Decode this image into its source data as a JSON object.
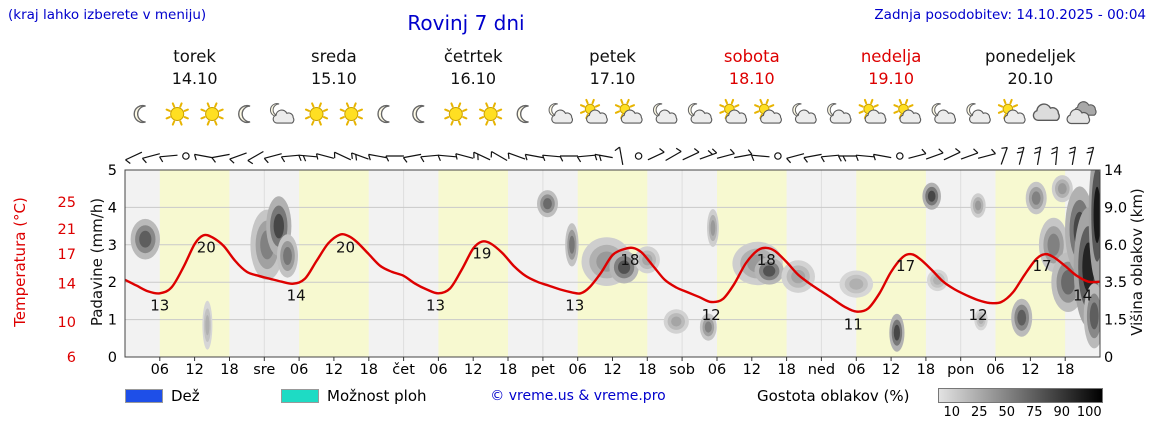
{
  "header": {
    "hint": "(kraj lahko izberete v meniju)",
    "title": "Rovinj 7 dni",
    "last_update": "Zadnja posodobitev: 14.10.2025 - 00:04"
  },
  "colors": {
    "blue": "#0000cc",
    "red": "#dd0000",
    "day_band": "#f7f9d0",
    "night_band": "#f2f2f2",
    "grid": "#c9c9c9",
    "rain_blue": "#1e4fe8",
    "shower_cyan": "#1edbc4",
    "density_from": "#e2e2e2",
    "density_to": "#000000"
  },
  "days": [
    {
      "name": "torek",
      "date": "14.10",
      "red": false,
      "icons": [
        "moon",
        "sun",
        "sun",
        "moon"
      ]
    },
    {
      "name": "sreda",
      "date": "15.10",
      "red": false,
      "icons": [
        "moon-cloud",
        "sun",
        "sun",
        "moon"
      ]
    },
    {
      "name": "četrtek",
      "date": "16.10",
      "red": false,
      "icons": [
        "moon",
        "sun",
        "sun",
        "moon"
      ]
    },
    {
      "name": "petek",
      "date": "17.10",
      "red": false,
      "icons": [
        "moon-cloud",
        "sun-cloud",
        "sun-cloud",
        "moon-cloud"
      ]
    },
    {
      "name": "sobota",
      "date": "18.10",
      "red": true,
      "icons": [
        "moon-cloud",
        "sun-cloud",
        "sun-cloud",
        "moon-cloud"
      ]
    },
    {
      "name": "nedelja",
      "date": "19.10",
      "red": true,
      "icons": [
        "moon-cloud",
        "sun-cloud",
        "sun-cloud",
        "moon-cloud"
      ]
    },
    {
      "name": "ponedeljek",
      "date": "20.10",
      "red": false,
      "icons": [
        "moon-cloud",
        "sun-cloud",
        "cloud",
        "clouds"
      ]
    }
  ],
  "chart_data": {
    "type": "line",
    "title": "Rovinj 7 dni",
    "x_axis": {
      "unit": "hour",
      "range": [
        0,
        168
      ],
      "hour_tick_labels": [
        "06",
        "12",
        "18"
      ],
      "day_boundary_labels": [
        "sre",
        "čet",
        "pet",
        "sob",
        "ned",
        "pon"
      ],
      "daylight_hours": [
        6,
        18
      ]
    },
    "y_left_precip": {
      "label": "Padavine (mm/h)",
      "ticks": [
        0,
        1,
        2,
        3,
        4,
        5
      ]
    },
    "y_left_temp": {
      "label": "Temperatura (°C)",
      "ticks": [
        {
          "v": 6,
          "u": 0
        },
        {
          "v": 10,
          "u": 0.93
        },
        {
          "v": 14,
          "u": 1.96
        },
        {
          "v": 17,
          "u": 2.75
        },
        {
          "v": 21,
          "u": 3.42
        },
        {
          "v": 25,
          "u": 4.15
        }
      ]
    },
    "y_right_cloud": {
      "label": "Višina oblakov (km)",
      "ticks": [
        {
          "label": "0",
          "u": 0
        },
        {
          "label": "1.5",
          "u": 1
        },
        {
          "label": "3.5",
          "u": 2
        },
        {
          "label": "6.0",
          "u": 3
        },
        {
          "label": "9.0",
          "u": 4
        },
        {
          "label": "14",
          "u": 5
        }
      ]
    },
    "daily_min_max": [
      [
        13,
        20
      ],
      [
        14,
        20
      ],
      [
        13,
        19
      ],
      [
        13,
        18
      ],
      [
        12,
        18
      ],
      [
        11,
        17
      ],
      [
        12,
        17
      ]
    ],
    "series": [
      {
        "name": "Temperatura (°C)",
        "color": "#dd0000",
        "points": [
          [
            0,
            14.4
          ],
          [
            2,
            13.8
          ],
          [
            4,
            13.2
          ],
          [
            6,
            13.0
          ],
          [
            8,
            13.6
          ],
          [
            10,
            15.6
          ],
          [
            12,
            18.6
          ],
          [
            13.5,
            20.0
          ],
          [
            15,
            19.7
          ],
          [
            17,
            18.3
          ],
          [
            19,
            16.3
          ],
          [
            21,
            15.2
          ],
          [
            23,
            14.8
          ],
          [
            25,
            14.5
          ],
          [
            27,
            14.2
          ],
          [
            29,
            14.0
          ],
          [
            31,
            14.5
          ],
          [
            33,
            16.3
          ],
          [
            35,
            18.7
          ],
          [
            37,
            20.1
          ],
          [
            38.5,
            19.9
          ],
          [
            40,
            18.9
          ],
          [
            42,
            17.0
          ],
          [
            44,
            15.8
          ],
          [
            46,
            15.2
          ],
          [
            48,
            14.8
          ],
          [
            50,
            14.0
          ],
          [
            52,
            13.4
          ],
          [
            54,
            13.0
          ],
          [
            56,
            13.5
          ],
          [
            58,
            15.4
          ],
          [
            60,
            17.9
          ],
          [
            61.5,
            19.0
          ],
          [
            63,
            18.7
          ],
          [
            65,
            17.2
          ],
          [
            67,
            15.8
          ],
          [
            69,
            14.8
          ],
          [
            71,
            14.2
          ],
          [
            73,
            13.8
          ],
          [
            75,
            13.4
          ],
          [
            77,
            13.1
          ],
          [
            78.5,
            13.0
          ],
          [
            80,
            13.6
          ],
          [
            82,
            15.1
          ],
          [
            84,
            16.9
          ],
          [
            86,
            17.8
          ],
          [
            87.5,
            18.0
          ],
          [
            89,
            17.3
          ],
          [
            91,
            15.8
          ],
          [
            93,
            14.4
          ],
          [
            95,
            13.6
          ],
          [
            97,
            13.1
          ],
          [
            99,
            12.6
          ],
          [
            101,
            12.1
          ],
          [
            103,
            12.4
          ],
          [
            105,
            14.0
          ],
          [
            107,
            16.1
          ],
          [
            109,
            17.6
          ],
          [
            110.5,
            18.0
          ],
          [
            112,
            17.5
          ],
          [
            114,
            16.2
          ],
          [
            116,
            14.9
          ],
          [
            118,
            14.0
          ],
          [
            120,
            13.2
          ],
          [
            122,
            12.4
          ],
          [
            124,
            11.6
          ],
          [
            126,
            11.1
          ],
          [
            128,
            11.4
          ],
          [
            130,
            13.0
          ],
          [
            132,
            15.2
          ],
          [
            134,
            16.7
          ],
          [
            135.5,
            17.0
          ],
          [
            137,
            16.5
          ],
          [
            139,
            15.4
          ],
          [
            141,
            14.2
          ],
          [
            143,
            13.4
          ],
          [
            145,
            12.8
          ],
          [
            147,
            12.3
          ],
          [
            149,
            12.0
          ],
          [
            151,
            12.1
          ],
          [
            153,
            13.1
          ],
          [
            155,
            14.9
          ],
          [
            157,
            16.5
          ],
          [
            158.5,
            17.0
          ],
          [
            160,
            16.7
          ],
          [
            162,
            15.8
          ],
          [
            164,
            14.8
          ],
          [
            166,
            14.2
          ],
          [
            168,
            14.2
          ]
        ]
      }
    ],
    "temperature_labels": [
      {
        "t": 6,
        "v": 13
      },
      {
        "t": 14,
        "v": 20
      },
      {
        "t": 29.5,
        "v": 14
      },
      {
        "t": 38,
        "v": 20
      },
      {
        "t": 53.5,
        "v": 13
      },
      {
        "t": 61.5,
        "v": 19
      },
      {
        "t": 77.5,
        "v": 13
      },
      {
        "t": 87,
        "v": 18
      },
      {
        "t": 101,
        "v": 12
      },
      {
        "t": 110.5,
        "v": 18
      },
      {
        "t": 125.5,
        "v": 11
      },
      {
        "t": 134.5,
        "v": 17
      },
      {
        "t": 147,
        "v": 12
      },
      {
        "t": 158,
        "v": 17
      },
      {
        "t": 165,
        "v": 14
      }
    ],
    "clouds": [
      {
        "t": 3.5,
        "u": 3.15,
        "w": 3.5,
        "h": 0.75,
        "s": 60
      },
      {
        "t": 14.2,
        "u": 0.85,
        "w": 1.2,
        "h": 0.9,
        "s": 25
      },
      {
        "t": 24.5,
        "u": 3.0,
        "w": 4.0,
        "h": 1.3,
        "s": 45
      },
      {
        "t": 26.5,
        "u": 3.5,
        "w": 3.0,
        "h": 1.1,
        "s": 70
      },
      {
        "t": 28,
        "u": 2.7,
        "w": 2.5,
        "h": 0.8,
        "s": 50
      },
      {
        "t": 72.8,
        "u": 4.1,
        "w": 2.5,
        "h": 0.5,
        "s": 55
      },
      {
        "t": 77,
        "u": 3.0,
        "w": 1.6,
        "h": 0.8,
        "s": 50
      },
      {
        "t": 83,
        "u": 2.55,
        "w": 6.0,
        "h": 0.9,
        "s": 35
      },
      {
        "t": 86,
        "u": 2.4,
        "w": 3.5,
        "h": 0.6,
        "s": 65
      },
      {
        "t": 90,
        "u": 2.6,
        "w": 3.0,
        "h": 0.5,
        "s": 30
      },
      {
        "t": 95,
        "u": 0.95,
        "w": 3.0,
        "h": 0.45,
        "s": 30
      },
      {
        "t": 100.5,
        "u": 0.8,
        "w": 2.0,
        "h": 0.5,
        "s": 45
      },
      {
        "t": 101.3,
        "u": 3.45,
        "w": 1.4,
        "h": 0.7,
        "s": 35
      },
      {
        "t": 109,
        "u": 2.5,
        "w": 6.0,
        "h": 0.8,
        "s": 35
      },
      {
        "t": 111,
        "u": 2.3,
        "w": 3.5,
        "h": 0.5,
        "s": 65
      },
      {
        "t": 116,
        "u": 2.15,
        "w": 4.0,
        "h": 0.6,
        "s": 30
      },
      {
        "t": 126,
        "u": 1.95,
        "w": 4.0,
        "h": 0.5,
        "s": 25
      },
      {
        "t": 133,
        "u": 0.65,
        "w": 1.8,
        "h": 0.7,
        "s": 70
      },
      {
        "t": 139,
        "u": 4.3,
        "w": 2.2,
        "h": 0.5,
        "s": 70
      },
      {
        "t": 140,
        "u": 2.05,
        "w": 2.5,
        "h": 0.4,
        "s": 25
      },
      {
        "t": 147,
        "u": 4.05,
        "w": 1.8,
        "h": 0.45,
        "s": 35
      },
      {
        "t": 147.5,
        "u": 1.0,
        "w": 1.6,
        "h": 0.4,
        "s": 25
      },
      {
        "t": 154.5,
        "u": 1.05,
        "w": 2.5,
        "h": 0.7,
        "s": 60
      },
      {
        "t": 157,
        "u": 4.25,
        "w": 2.5,
        "h": 0.6,
        "s": 45
      },
      {
        "t": 160,
        "u": 3.0,
        "w": 3.5,
        "h": 1.0,
        "s": 45
      },
      {
        "t": 161.5,
        "u": 4.5,
        "w": 2.5,
        "h": 0.5,
        "s": 35
      },
      {
        "t": 162.5,
        "u": 2.0,
        "w": 4.0,
        "h": 1.1,
        "s": 55
      },
      {
        "t": 164.5,
        "u": 3.4,
        "w": 3.5,
        "h": 1.6,
        "s": 70
      },
      {
        "t": 166,
        "u": 2.4,
        "w": 3.5,
        "h": 2.2,
        "s": 85
      },
      {
        "t": 167,
        "u": 1.1,
        "w": 2.5,
        "h": 1.2,
        "s": 60
      },
      {
        "t": 167.5,
        "u": 3.8,
        "w": 2.0,
        "h": 2.5,
        "s": 90
      }
    ],
    "winds": [
      [
        1.5,
        205,
        1
      ],
      [
        4.5,
        195,
        1
      ],
      [
        7.5,
        185,
        1
      ],
      [
        10.5,
        0,
        0
      ],
      [
        13.5,
        170,
        1
      ],
      [
        16.5,
        190,
        1
      ],
      [
        19.5,
        200,
        1
      ],
      [
        22.5,
        210,
        1
      ],
      [
        25.5,
        195,
        1
      ],
      [
        28.5,
        185,
        1
      ],
      [
        31.5,
        175,
        2
      ],
      [
        34.5,
        165,
        1
      ],
      [
        37.5,
        155,
        1
      ],
      [
        40.5,
        160,
        2
      ],
      [
        43.5,
        170,
        1
      ],
      [
        46.5,
        180,
        1
      ],
      [
        49.5,
        190,
        1
      ],
      [
        52.5,
        185,
        1
      ],
      [
        55.5,
        175,
        1
      ],
      [
        58.5,
        165,
        1
      ],
      [
        61.5,
        155,
        2
      ],
      [
        64.5,
        150,
        1
      ],
      [
        67.5,
        160,
        1
      ],
      [
        70.5,
        170,
        1
      ],
      [
        73.5,
        175,
        1
      ],
      [
        76.5,
        180,
        1
      ],
      [
        79.5,
        185,
        1
      ],
      [
        82.5,
        170,
        2
      ],
      [
        85.5,
        100,
        1
      ],
      [
        88.5,
        0,
        0
      ],
      [
        91.5,
        25,
        1
      ],
      [
        94.5,
        30,
        1
      ],
      [
        97.5,
        25,
        1
      ],
      [
        100.5,
        20,
        2
      ],
      [
        103.5,
        15,
        1
      ],
      [
        106.5,
        10,
        1
      ],
      [
        109.5,
        175,
        1
      ],
      [
        112.5,
        0,
        0
      ],
      [
        115.5,
        195,
        1
      ],
      [
        118.5,
        190,
        1
      ],
      [
        121.5,
        185,
        1
      ],
      [
        124.5,
        180,
        2
      ],
      [
        127.5,
        175,
        1
      ],
      [
        130.5,
        170,
        1
      ],
      [
        133.5,
        0,
        0
      ],
      [
        136.5,
        15,
        1
      ],
      [
        139.5,
        20,
        1
      ],
      [
        142.5,
        25,
        1
      ],
      [
        145.5,
        20,
        1
      ],
      [
        148.5,
        15,
        1
      ],
      [
        151.5,
        70,
        1
      ],
      [
        154.5,
        75,
        2
      ],
      [
        157.5,
        80,
        2
      ],
      [
        160.5,
        85,
        2
      ],
      [
        163.5,
        80,
        2
      ],
      [
        166.5,
        75,
        2
      ]
    ]
  },
  "legend": {
    "rain_label": "Dež",
    "shower_label": "Možnost ploh",
    "copyright": "© vreme.us & vreme.pro",
    "cloud_density_label": "Gostota oblakov (%)",
    "cloud_density_values": [
      10,
      25,
      50,
      75,
      90,
      100
    ]
  }
}
